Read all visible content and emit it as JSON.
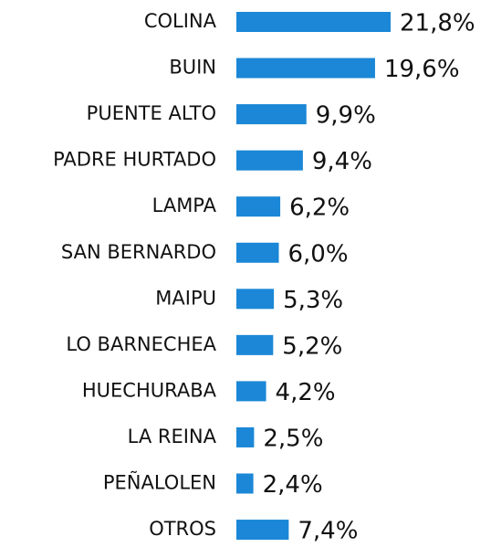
{
  "chart_data": {
    "type": "barh",
    "categories": [
      "COLINA",
      "BUIN",
      "PUENTE ALTO",
      "PADRE HURTADO",
      "LAMPA",
      "SAN BERNARDO",
      "MAIPU",
      "LO BARNECHEA",
      "HUECHURABA",
      "LA REINA",
      "PEÑALOLEN",
      "OTROS"
    ],
    "values": [
      21.8,
      19.6,
      9.9,
      9.4,
      6.2,
      6.0,
      5.3,
      5.2,
      4.2,
      2.5,
      2.4,
      7.4
    ],
    "value_labels": [
      "21,8%",
      "19,6%",
      "9,9%",
      "9,4%",
      "6,2%",
      "6,0%",
      "5,3%",
      "5,2%",
      "4,2%",
      "2,5%",
      "2,4%",
      "7,4%"
    ],
    "color": "#1b87d6"
  }
}
